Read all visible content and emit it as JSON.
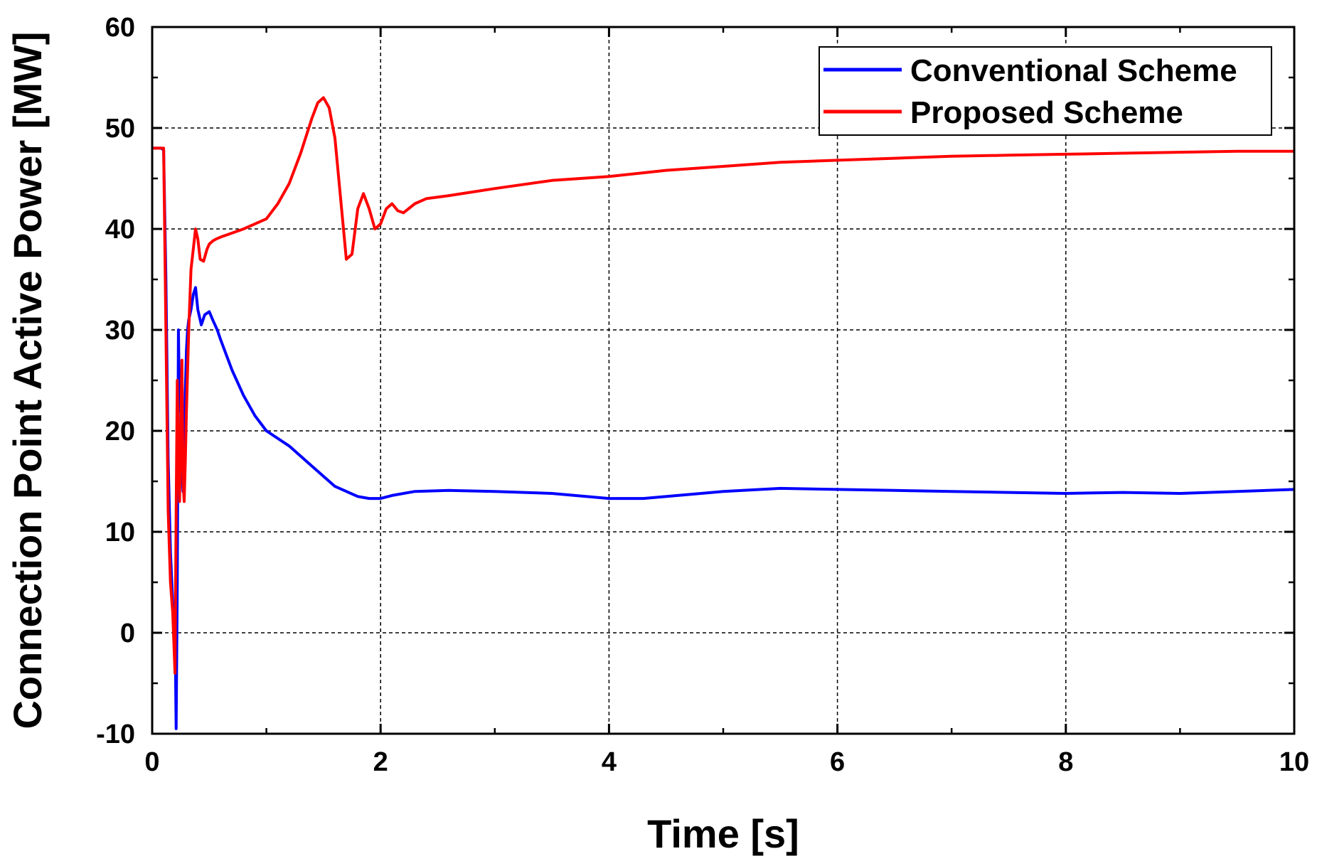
{
  "chart_data": {
    "type": "line",
    "title": "",
    "xlabel": "Time [s]",
    "ylabel": "Connection Point Active Power [MW]",
    "xlim": [
      0,
      10
    ],
    "ylim": [
      -10,
      60
    ],
    "xticks": [
      0,
      2,
      4,
      6,
      8,
      10
    ],
    "yticks": [
      -10,
      0,
      10,
      20,
      30,
      40,
      50,
      60
    ],
    "xtick_labels": [
      "0",
      "2",
      "4",
      "6",
      "8",
      "10"
    ],
    "ytick_labels": [
      "-10",
      "0",
      "10",
      "20",
      "30",
      "40",
      "50",
      "60"
    ],
    "grid": true,
    "legend_position": "top-right",
    "series": [
      {
        "name": "Conventional Scheme",
        "color": "#0000ff",
        "x": [
          0.0,
          0.08,
          0.1,
          0.12,
          0.14,
          0.16,
          0.18,
          0.2,
          0.21,
          0.22,
          0.23,
          0.24,
          0.25,
          0.26,
          0.27,
          0.28,
          0.29,
          0.3,
          0.31,
          0.32,
          0.34,
          0.36,
          0.38,
          0.4,
          0.43,
          0.46,
          0.5,
          0.53,
          0.57,
          0.6,
          0.7,
          0.8,
          0.9,
          1.0,
          1.2,
          1.4,
          1.6,
          1.8,
          1.9,
          2.0,
          2.1,
          2.3,
          2.6,
          3.0,
          3.5,
          4.0,
          4.3,
          4.7,
          5.0,
          5.5,
          6.0,
          6.5,
          7.0,
          7.5,
          8.0,
          8.5,
          9.0,
          9.5,
          10.0
        ],
        "values": [
          48.0,
          48.0,
          47.8,
          35.0,
          17.0,
          8.0,
          3.0,
          1.0,
          -9.5,
          5.0,
          30.0,
          22.0,
          26.0,
          16.0,
          14.0,
          18.0,
          24.0,
          28.0,
          30.0,
          31.0,
          32.0,
          33.5,
          34.2,
          32.0,
          30.5,
          31.5,
          31.8,
          31.0,
          30.0,
          29.0,
          26.0,
          23.5,
          21.5,
          20.0,
          18.5,
          16.5,
          14.5,
          13.5,
          13.3,
          13.3,
          13.6,
          14.0,
          14.1,
          14.0,
          13.8,
          13.3,
          13.3,
          13.7,
          14.0,
          14.3,
          14.2,
          14.1,
          14.0,
          13.9,
          13.8,
          13.9,
          13.8,
          14.0,
          14.2
        ]
      },
      {
        "name": "Proposed Scheme",
        "color": "#ff0000",
        "x": [
          0.0,
          0.08,
          0.1,
          0.12,
          0.14,
          0.16,
          0.18,
          0.2,
          0.21,
          0.22,
          0.23,
          0.24,
          0.25,
          0.26,
          0.27,
          0.28,
          0.29,
          0.3,
          0.32,
          0.34,
          0.36,
          0.38,
          0.4,
          0.42,
          0.45,
          0.48,
          0.5,
          0.53,
          0.56,
          0.6,
          0.7,
          0.8,
          0.9,
          1.0,
          1.1,
          1.2,
          1.3,
          1.4,
          1.45,
          1.5,
          1.55,
          1.6,
          1.65,
          1.7,
          1.75,
          1.8,
          1.85,
          1.9,
          1.95,
          2.0,
          2.05,
          2.1,
          2.15,
          2.2,
          2.3,
          2.4,
          2.6,
          3.0,
          3.5,
          4.0,
          4.5,
          5.0,
          5.5,
          6.0,
          6.5,
          7.0,
          7.5,
          8.0,
          8.5,
          9.0,
          9.5,
          10.0
        ],
        "values": [
          48.0,
          48.0,
          48.0,
          30.0,
          12.0,
          5.0,
          2.0,
          -4.0,
          12.0,
          25.0,
          18.0,
          13.0,
          20.0,
          27.0,
          15.0,
          13.0,
          17.0,
          22.0,
          30.0,
          36.0,
          38.0,
          40.0,
          39.0,
          37.0,
          36.8,
          38.0,
          38.5,
          38.8,
          39.0,
          39.2,
          39.6,
          40.0,
          40.5,
          41.0,
          42.5,
          44.5,
          47.5,
          51.0,
          52.5,
          53.0,
          52.0,
          49.0,
          43.0,
          37.0,
          37.5,
          42.0,
          43.5,
          42.0,
          40.0,
          40.5,
          42.0,
          42.5,
          41.8,
          41.6,
          42.5,
          43.0,
          43.3,
          44.0,
          44.8,
          45.2,
          45.8,
          46.2,
          46.6,
          46.8,
          47.0,
          47.2,
          47.3,
          47.4,
          47.5,
          47.6,
          47.7,
          47.7
        ]
      }
    ]
  }
}
